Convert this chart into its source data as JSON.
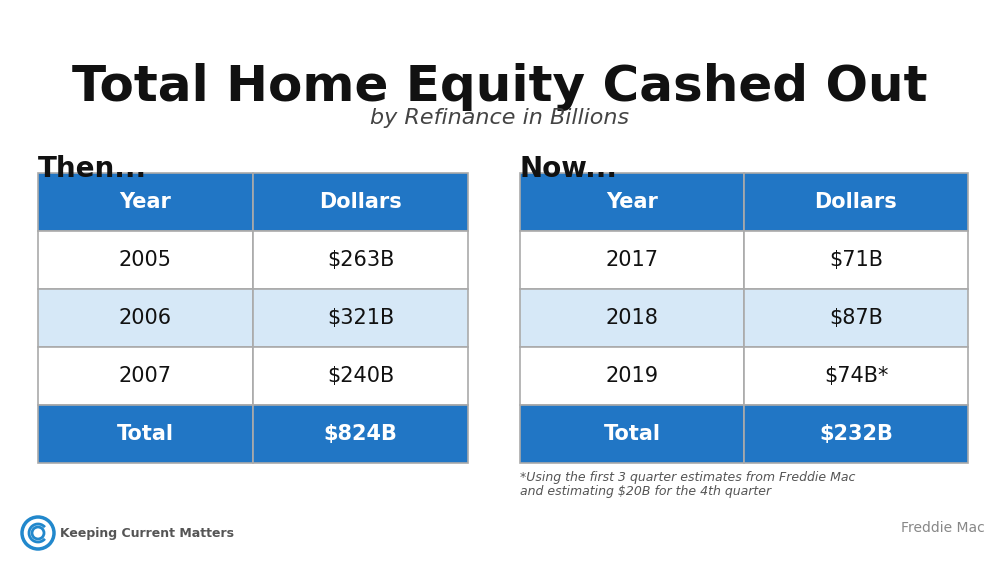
{
  "title": "Total Home Equity Cashed Out",
  "subtitle": "by Refinance in Billions",
  "then_label": "Then...",
  "now_label": "Now...",
  "then_headers": [
    "Year",
    "Dollars"
  ],
  "now_headers": [
    "Year",
    "Dollars"
  ],
  "then_rows": [
    [
      "2005",
      "$263B"
    ],
    [
      "2006",
      "$321B"
    ],
    [
      "2007",
      "$240B"
    ]
  ],
  "now_rows": [
    [
      "2017",
      "$71B"
    ],
    [
      "2018",
      "$87B"
    ],
    [
      "2019",
      "$74B*"
    ]
  ],
  "then_total": [
    "Total",
    "$824B"
  ],
  "now_total": [
    "Total",
    "$232B"
  ],
  "header_bg": "#2176C5",
  "header_fg": "#FFFFFF",
  "total_bg": "#2176C5",
  "total_fg": "#FFFFFF",
  "row_bg_odd": "#FFFFFF",
  "row_bg_even": "#D6E8F7",
  "row_fg": "#111111",
  "table_border": "#AAAAAA",
  "footnote_line1": "*Using the first 3 quarter estimates from Freddie Mac",
  "footnote_line2": "and estimating $20B for the 4th quarter",
  "source": "Freddie Mac",
  "bg_color": "#FFFFFF",
  "title_color": "#111111",
  "subtitle_color": "#444444",
  "then_now_color": "#111111",
  "footnote_color": "#555555",
  "source_color": "#888888",
  "kcm_text": "Keeping Current Matters",
  "kcm_text_color": "#555555",
  "kcm_circle_color": "#2288CC"
}
